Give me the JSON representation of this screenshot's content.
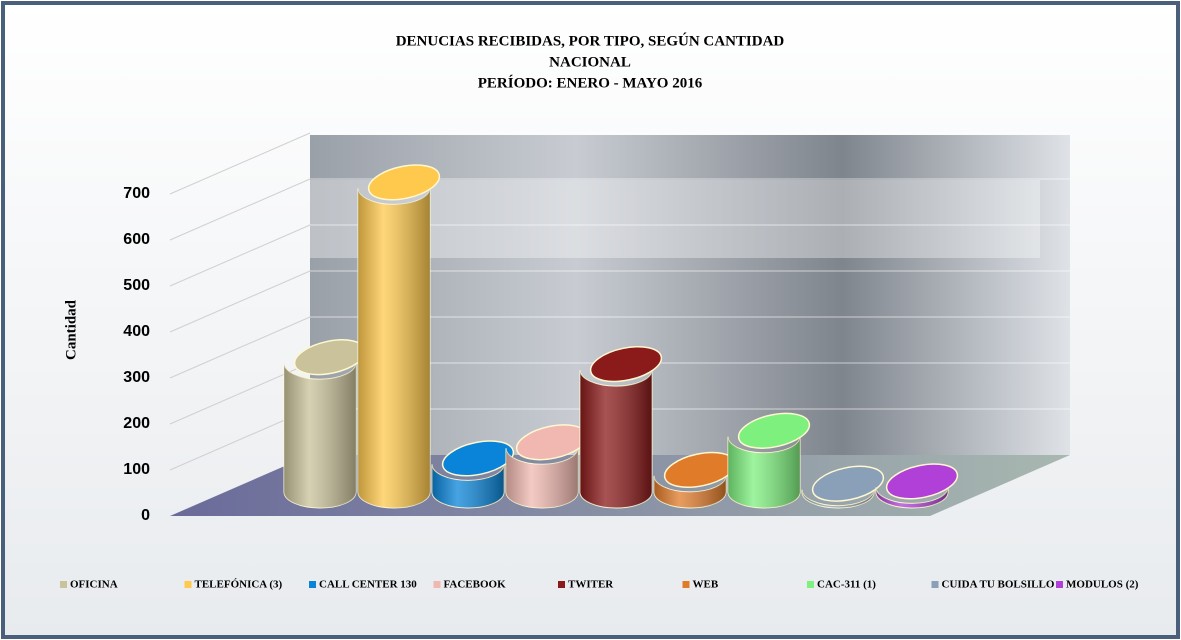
{
  "chart_data": {
    "type": "bar3d",
    "title": "DENUCIAS RECIBIDAS, POR TIPO, SEGÚN CANTIDAD",
    "subtitle": [
      "NACIONAL",
      "PERÍODO: ENERO - MAYO 2016"
    ],
    "y_label": "Cantidad",
    "categories": [
      "OFICINA",
      "TELEFÓNICA (3)",
      "CALL CENTER 130",
      "FACEBOOK",
      "TWITER",
      "WEB",
      "CAC-311 (1)",
      "CUIDA TU BOLSILLO",
      "MODULOS (2)"
    ],
    "values": [
      280,
      660,
      60,
      95,
      265,
      35,
      120,
      5,
      10
    ],
    "colors": [
      "#c9c29a",
      "#ffc94d",
      "#0a84d8",
      "#f0b8b0",
      "#8b1a1a",
      "#e07b2a",
      "#7ef07e",
      "#8aa0b8",
      "#b040d8"
    ],
    "ylim": [
      0,
      700
    ],
    "yticks": [
      0,
      100,
      200,
      300,
      400,
      500,
      600,
      700
    ],
    "grid": true
  }
}
